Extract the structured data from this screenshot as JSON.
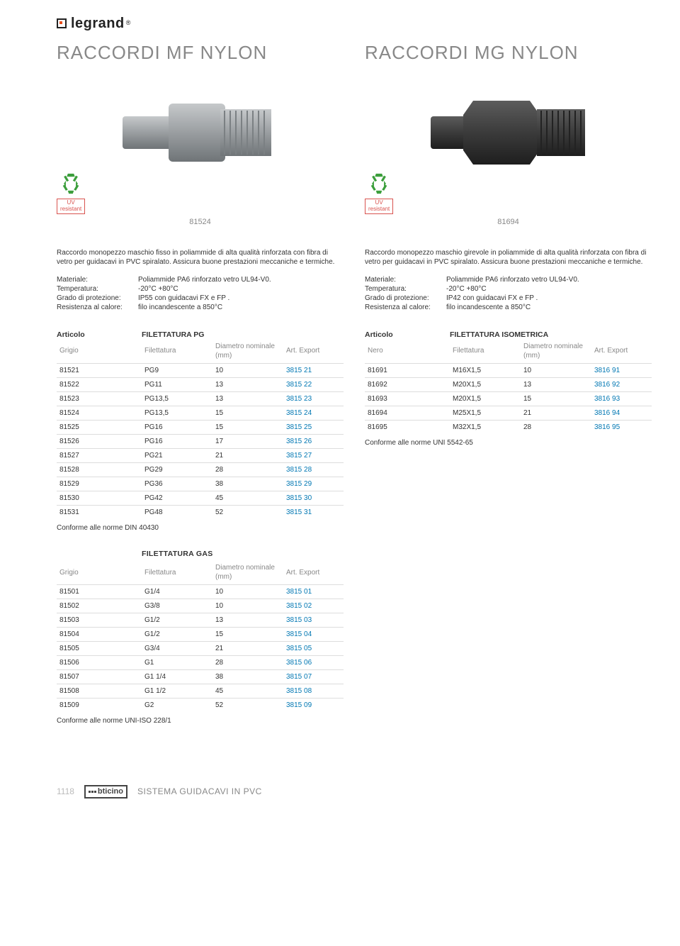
{
  "logo": {
    "text": "legrand",
    "reg": "®"
  },
  "heading_left": "RACCORDI MF NYLON",
  "heading_right": "RACCORDI MG NYLON",
  "uv_badge": {
    "line1": "UV",
    "line2": "resistant"
  },
  "product_left_ref": "81524",
  "product_right_ref": "81694",
  "desc_left": "Raccordo monopezzo maschio fisso in poliammide di alta qualità rinforzata con fibra di vetro per guidacavi in PVC spiralato. Assicura buone prestazioni meccaniche e termiche.",
  "desc_right": "Raccordo monopezzo maschio girevole in poliammide di alta qualità rinforzata con fibra di vetro per guidacavi in PVC spiralato. Assicura buone prestazioni meccaniche e termiche.",
  "spec": {
    "labels": {
      "materiale": "Materiale:",
      "temp": "Temperatura:",
      "grado": "Grado di protezione:",
      "res": "Resistenza al calore:"
    },
    "left": {
      "materiale": "Poliammide PA6 rinforzato vetro UL94-V0.",
      "temp": "-20°C +80°C",
      "grado": "IP55 con guidacavi FX e FP .",
      "res": "filo incandescente a 850°C"
    },
    "right": {
      "materiale": "Poliammide PA6 rinforzato vetro UL94-V0.",
      "temp": "-20°C +80°C",
      "grado": "IP42 con guidacavi FX e FP .",
      "res": "filo incandescente a 850°C"
    }
  },
  "table_headers": {
    "articolo": "Articolo",
    "grigio": "Grigio",
    "nero": "Nero",
    "filettatura": "Filettatura",
    "diametro": "Diametro nominale (mm)",
    "export": "Art. Export"
  },
  "table_pg": {
    "title": "FILETTATURA PG",
    "rows": [
      {
        "a": "81521",
        "f": "PG9",
        "d": "10",
        "e": "3815 21"
      },
      {
        "a": "81522",
        "f": "PG11",
        "d": "13",
        "e": "3815 22"
      },
      {
        "a": "81523",
        "f": "PG13,5",
        "d": "13",
        "e": "3815 23"
      },
      {
        "a": "81524",
        "f": "PG13,5",
        "d": "15",
        "e": "3815 24"
      },
      {
        "a": "81525",
        "f": "PG16",
        "d": "15",
        "e": "3815 25"
      },
      {
        "a": "81526",
        "f": "PG16",
        "d": "17",
        "e": "3815 26"
      },
      {
        "a": "81527",
        "f": "PG21",
        "d": "21",
        "e": "3815 27"
      },
      {
        "a": "81528",
        "f": "PG29",
        "d": "28",
        "e": "3815 28"
      },
      {
        "a": "81529",
        "f": "PG36",
        "d": "38",
        "e": "3815 29"
      },
      {
        "a": "81530",
        "f": "PG42",
        "d": "45",
        "e": "3815 30"
      },
      {
        "a": "81531",
        "f": "PG48",
        "d": "52",
        "e": "3815 31"
      }
    ],
    "note": "Conforme alle norme DIN 40430"
  },
  "table_iso": {
    "title": "FILETTATURA ISOMETRICA",
    "rows": [
      {
        "a": "81691",
        "f": "M16X1,5",
        "d": "10",
        "e": "3816 91"
      },
      {
        "a": "81692",
        "f": "M20X1,5",
        "d": "13",
        "e": "3816 92"
      },
      {
        "a": "81693",
        "f": "M20X1,5",
        "d": "15",
        "e": "3816 93"
      },
      {
        "a": "81694",
        "f": "M25X1,5",
        "d": "21",
        "e": "3816 94"
      },
      {
        "a": "81695",
        "f": "M32X1,5",
        "d": "28",
        "e": "3816 95"
      }
    ],
    "note": "Conforme alle norme UNI 5542-65"
  },
  "table_gas": {
    "title": "FILETTATURA GAS",
    "rows": [
      {
        "a": "81501",
        "f": "G1/4",
        "d": "10",
        "e": "3815 01"
      },
      {
        "a": "81502",
        "f": "G3/8",
        "d": "10",
        "e": "3815 02"
      },
      {
        "a": "81503",
        "f": "G1/2",
        "d": "13",
        "e": "3815 03"
      },
      {
        "a": "81504",
        "f": "G1/2",
        "d": "15",
        "e": "3815 04"
      },
      {
        "a": "81505",
        "f": "G3/4",
        "d": "21",
        "e": "3815 05"
      },
      {
        "a": "81506",
        "f": "G1",
        "d": "28",
        "e": "3815 06"
      },
      {
        "a": "81507",
        "f": "G1 1/4",
        "d": "38",
        "e": "3815 07"
      },
      {
        "a": "81508",
        "f": "G1 1/2",
        "d": "45",
        "e": "3815 08"
      },
      {
        "a": "81509",
        "f": "G2",
        "d": "52",
        "e": "3815 09"
      }
    ],
    "note": "Conforme alle norme UNI-ISO 228/1"
  },
  "footer": {
    "page": "1118",
    "brand": "bticino",
    "section": "SISTEMA GUIDACAVI IN PVC"
  },
  "colors": {
    "recycle": "#3b9e3b",
    "export": "#0077b3",
    "grey_prod": "#9a9ea1",
    "dark_prod": "#3b3b3b"
  }
}
